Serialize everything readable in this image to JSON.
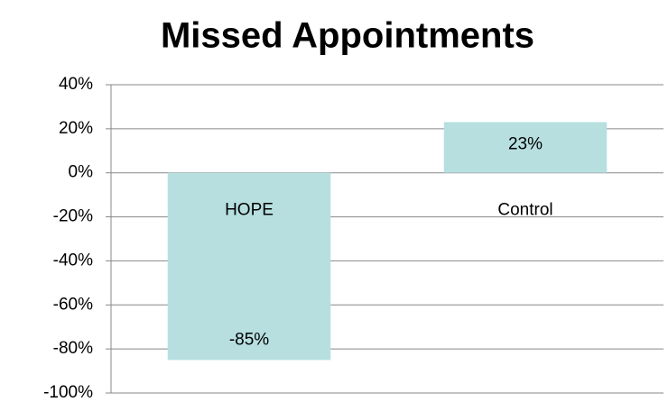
{
  "chart_data": {
    "type": "bar",
    "title": "Missed Appointments",
    "categories": [
      "HOPE",
      "Control"
    ],
    "values": [
      -85,
      23
    ],
    "value_labels": [
      "-85%",
      "23%"
    ],
    "color": "#b7dfe0",
    "ylim": [
      -100,
      40
    ],
    "yticks": [
      {
        "value": -100,
        "label": "-100%"
      },
      {
        "value": -80,
        "label": "-80%"
      },
      {
        "value": -60,
        "label": "-60%"
      },
      {
        "value": -40,
        "label": "-40%"
      },
      {
        "value": -20,
        "label": "-20%"
      },
      {
        "value": 0,
        "label": "0%"
      },
      {
        "value": 20,
        "label": "20%"
      },
      {
        "value": 40,
        "label": "40%"
      }
    ],
    "grid": true
  }
}
